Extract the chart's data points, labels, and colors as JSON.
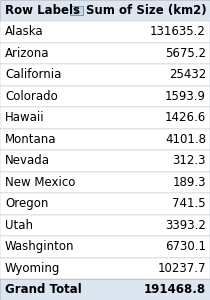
{
  "header_left": "Row Labels",
  "header_right": "Sum of Size (km2)",
  "rows": [
    {
      "label": "Alaska",
      "value": "131635.2"
    },
    {
      "label": "Arizona",
      "value": "5675.2"
    },
    {
      "label": "California",
      "value": "25432"
    },
    {
      "label": "Colorado",
      "value": "1593.9"
    },
    {
      "label": "Hawaii",
      "value": "1426.6"
    },
    {
      "label": "Montana",
      "value": "4101.8"
    },
    {
      "label": "Nevada",
      "value": "312.3"
    },
    {
      "label": "New Mexico",
      "value": "189.3"
    },
    {
      "label": "Oregon",
      "value": "741.5"
    },
    {
      "label": "Utah",
      "value": "3393.2"
    },
    {
      "label": "Washginton",
      "value": "6730.1"
    },
    {
      "label": "Wyoming",
      "value": "10237.7"
    }
  ],
  "footer_label": "Grand Total",
  "footer_value": "191468.8",
  "header_bg": "#dce6f1",
  "footer_bg": "#dce6f1",
  "row_bg": "#ffffff",
  "border_color": "#b0b8c0",
  "text_color": "#000000",
  "header_font_size": 8.5,
  "row_font_size": 8.5,
  "footer_font_size": 8.5,
  "filter_icon": "▾",
  "filter_box_color": "#c8d8e8",
  "filter_box_border": "#7090a0"
}
